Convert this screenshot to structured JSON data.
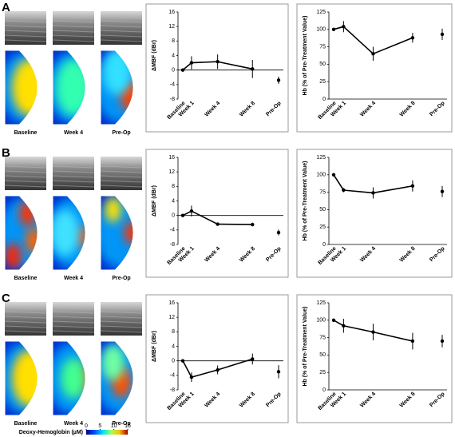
{
  "panels": [
    {
      "label": "A",
      "images": [
        "Baseline",
        "Week 4",
        "Pre-Op"
      ]
    },
    {
      "label": "B",
      "images": [
        "Baseline",
        "Week 4",
        "Pre-Op"
      ]
    },
    {
      "label": "C",
      "images": [
        "Baseline",
        "Week 4",
        "Pre-Op"
      ]
    }
  ],
  "colorbar": {
    "label": "Deoxy-Hemoglobin (µM)",
    "range": [
      0,
      15
    ],
    "ticks": [
      0,
      5,
      10,
      15
    ]
  },
  "chart_data": [
    {
      "type": "line",
      "ylabel": "ΔMBF (dBr)",
      "categories": [
        "Baseline",
        "Week 1",
        "Week 4",
        "Week 8",
        "Pre-Op"
      ],
      "values": [
        0,
        2,
        2.3,
        0.3,
        -2.8
      ],
      "errors": [
        0,
        1.8,
        2,
        2.5,
        1
      ],
      "color": "#000000",
      "ylim": [
        -8,
        16
      ],
      "yticks": [
        -8,
        -4,
        0,
        4,
        8,
        12,
        16
      ]
    },
    {
      "type": "line",
      "ylabel": "Hb (% of Pre-Treatment Value)",
      "categories": [
        "Baseline",
        "Week 1",
        "Week 4",
        "Week 8",
        "Pre-Op"
      ],
      "values": [
        100,
        104,
        65,
        88,
        93
      ],
      "errors": [
        0,
        8,
        10,
        7,
        8
      ],
      "color": "#000000",
      "ylim": [
        0,
        125
      ],
      "yticks": [
        0,
        25,
        50,
        75,
        100,
        125
      ]
    },
    {
      "type": "line",
      "ylabel": "ΔMBF (dBr)",
      "categories": [
        "Baseline",
        "Week 1",
        "Week 4",
        "Week 8",
        "Pre-Op"
      ],
      "values": [
        0,
        1.2,
        -2.4,
        -2.5,
        -4.7
      ],
      "errors": [
        0,
        1.5,
        0.3,
        0.5,
        0.8
      ],
      "color": "#000000",
      "ylim": [
        -8,
        16
      ],
      "yticks": [
        -8,
        -4,
        0,
        4,
        8,
        12,
        16
      ]
    },
    {
      "type": "line",
      "ylabel": "Hb (% of Pre-Treatment Value)",
      "categories": [
        "Baseline",
        "Week 1",
        "Week 4",
        "Week 8",
        "Pre-Op"
      ],
      "values": [
        100,
        78,
        74,
        84,
        76
      ],
      "errors": [
        0,
        3,
        8,
        8,
        8
      ],
      "color": "#000000",
      "ylim": [
        0,
        125
      ],
      "yticks": [
        0,
        25,
        50,
        75,
        100,
        125
      ]
    },
    {
      "type": "line",
      "ylabel": "ΔMBF (dBr)",
      "categories": [
        "Baseline",
        "Week 1",
        "Week 4",
        "Week 8",
        "Pre-Op"
      ],
      "values": [
        0,
        -4.5,
        -2.5,
        0.5,
        -3
      ],
      "errors": [
        0,
        1.3,
        1.2,
        1.5,
        1.8
      ],
      "color": "#000000",
      "ylim": [
        -8,
        16
      ],
      "yticks": [
        -8,
        -4,
        0,
        4,
        8,
        12,
        16
      ]
    },
    {
      "type": "line",
      "ylabel": "Hb (% of Pre-Treatment Value)",
      "categories": [
        "Baseline",
        "Week 1",
        "Week 4",
        "Week 8",
        "Pre-Op"
      ],
      "values": [
        100,
        92,
        83,
        70,
        70
      ],
      "errors": [
        0,
        10,
        12,
        12,
        9
      ],
      "color": "#000000",
      "ylim": [
        0,
        125
      ],
      "yticks": [
        0,
        25,
        50,
        75,
        100,
        125
      ]
    }
  ]
}
